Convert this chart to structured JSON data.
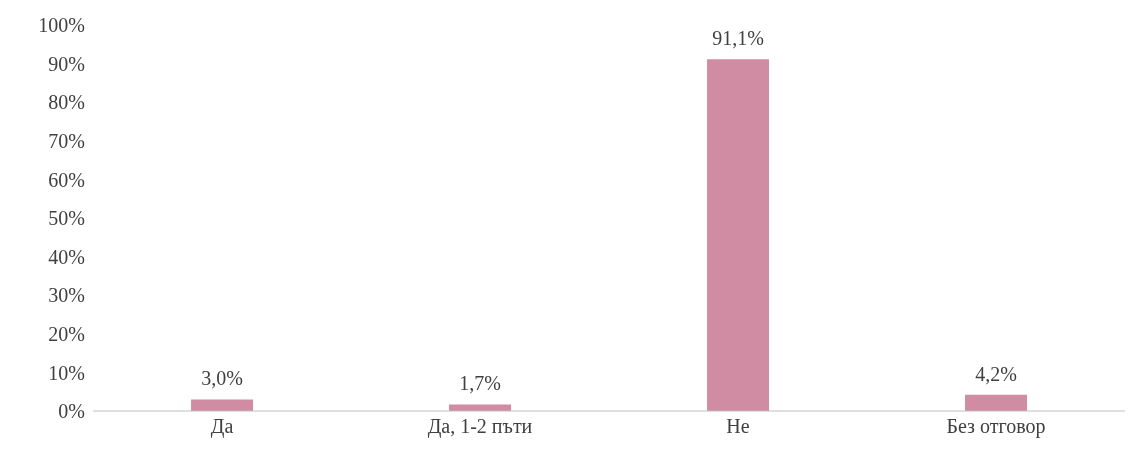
{
  "chart_data": {
    "type": "bar",
    "categories": [
      "Да",
      "Да, 1-2 пъти",
      "Не",
      "Без отговор"
    ],
    "values": [
      3.0,
      1.7,
      91.1,
      4.2
    ],
    "value_labels": [
      "3,0%",
      "1,7%",
      "91,1%",
      "4,2%"
    ],
    "color": "#d08ca2",
    "ylim": [
      0,
      100
    ],
    "yticks": [
      {
        "value": 0,
        "label": "0%"
      },
      {
        "value": 10,
        "label": "10%"
      },
      {
        "value": 20,
        "label": "20%"
      },
      {
        "value": 30,
        "label": "30%"
      },
      {
        "value": 40,
        "label": "40%"
      },
      {
        "value": 50,
        "label": "50%"
      },
      {
        "value": 60,
        "label": "60%"
      },
      {
        "value": 70,
        "label": "70%"
      },
      {
        "value": 80,
        "label": "80%"
      },
      {
        "value": 90,
        "label": "90%"
      },
      {
        "value": 100,
        "label": "100%"
      }
    ],
    "grid": false,
    "legend": false
  }
}
